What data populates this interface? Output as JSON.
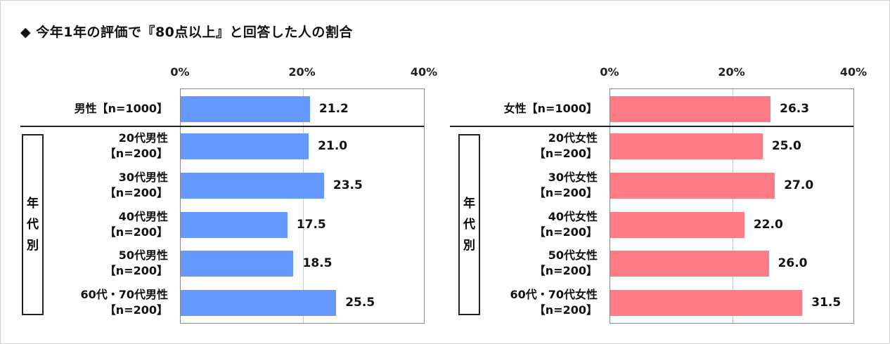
{
  "title": "◆ 今年1年の評価で『80点以上』と回答した人の割合",
  "chart_data": [
    {
      "type": "bar",
      "orientation": "horizontal",
      "title": "男性",
      "xlim": [
        0,
        40
      ],
      "ticks": [
        "0%",
        "20%",
        "40%"
      ],
      "group_label": [
        "年",
        "代",
        "別"
      ],
      "color": "#6699ff",
      "categories": [
        [
          "男性【n=1000】"
        ],
        [
          "20代男性",
          "【n=200】"
        ],
        [
          "30代男性",
          "【n=200】"
        ],
        [
          "40代男性",
          "【n=200】"
        ],
        [
          "50代男性",
          "【n=200】"
        ],
        [
          "60代・70代男性",
          "【n=200】"
        ]
      ],
      "values": [
        21.2,
        21.0,
        23.5,
        17.5,
        18.5,
        25.5
      ],
      "value_labels": [
        "21.2",
        "21.0",
        "23.5",
        "17.5",
        "18.5",
        "25.5"
      ]
    },
    {
      "type": "bar",
      "orientation": "horizontal",
      "title": "女性",
      "xlim": [
        0,
        40
      ],
      "ticks": [
        "0%",
        "20%",
        "40%"
      ],
      "group_label": [
        "年",
        "代",
        "別"
      ],
      "color": "#ff7b85",
      "categories": [
        [
          "女性【n=1000】"
        ],
        [
          "20代女性",
          "【n=200】"
        ],
        [
          "30代女性",
          "【n=200】"
        ],
        [
          "40代女性",
          "【n=200】"
        ],
        [
          "50代女性",
          "【n=200】"
        ],
        [
          "60代・70代女性",
          "【n=200】"
        ]
      ],
      "values": [
        26.3,
        25.0,
        27.0,
        22.0,
        26.0,
        31.5
      ],
      "value_labels": [
        "26.3",
        "25.0",
        "27.0",
        "22.0",
        "26.0",
        "31.5"
      ]
    }
  ]
}
